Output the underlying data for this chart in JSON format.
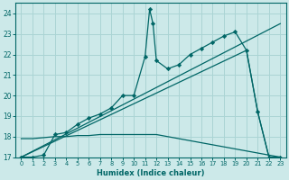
{
  "xlabel": "Humidex (Indice chaleur)",
  "bg_color": "#cce9e9",
  "grid_color": "#aad4d4",
  "line_color": "#006666",
  "xlim": [
    -0.5,
    23.5
  ],
  "ylim": [
    17,
    24.5
  ],
  "xticks": [
    0,
    1,
    2,
    3,
    4,
    5,
    6,
    7,
    8,
    9,
    10,
    11,
    12,
    13,
    14,
    15,
    16,
    17,
    18,
    19,
    20,
    21,
    22,
    23
  ],
  "yticks": [
    17,
    18,
    19,
    20,
    21,
    22,
    23,
    24
  ],
  "main_x": [
    0,
    1,
    2,
    3,
    4,
    5,
    6,
    7,
    8,
    9,
    10,
    11,
    11.4,
    11.7,
    12,
    13,
    14,
    15,
    16,
    17,
    18,
    19,
    20,
    21,
    22,
    23
  ],
  "main_y": [
    17.0,
    17.0,
    17.1,
    18.1,
    18.2,
    18.6,
    18.9,
    19.1,
    19.4,
    20.0,
    20.0,
    21.9,
    24.2,
    23.5,
    21.7,
    21.3,
    21.5,
    22.0,
    22.3,
    22.6,
    22.9,
    23.1,
    22.2,
    19.2,
    17.0,
    17.0
  ],
  "trend1_x": [
    0,
    23
  ],
  "trend1_y": [
    17.0,
    23.5
  ],
  "trend2_x": [
    0,
    20,
    21,
    22,
    23
  ],
  "trend2_y": [
    17.0,
    22.2,
    19.2,
    17.0,
    17.0
  ],
  "flat_x": [
    0,
    1,
    2,
    3,
    4,
    5,
    6,
    7,
    8,
    9,
    10,
    11,
    12,
    13,
    14,
    15,
    16,
    17,
    18,
    19,
    20,
    21,
    22,
    23
  ],
  "flat_y": [
    17.9,
    17.9,
    17.95,
    18.0,
    18.0,
    18.05,
    18.05,
    18.1,
    18.1,
    18.1,
    18.1,
    18.1,
    18.1,
    18.0,
    17.9,
    17.8,
    17.7,
    17.6,
    17.5,
    17.4,
    17.3,
    17.2,
    17.1,
    17.0
  ]
}
